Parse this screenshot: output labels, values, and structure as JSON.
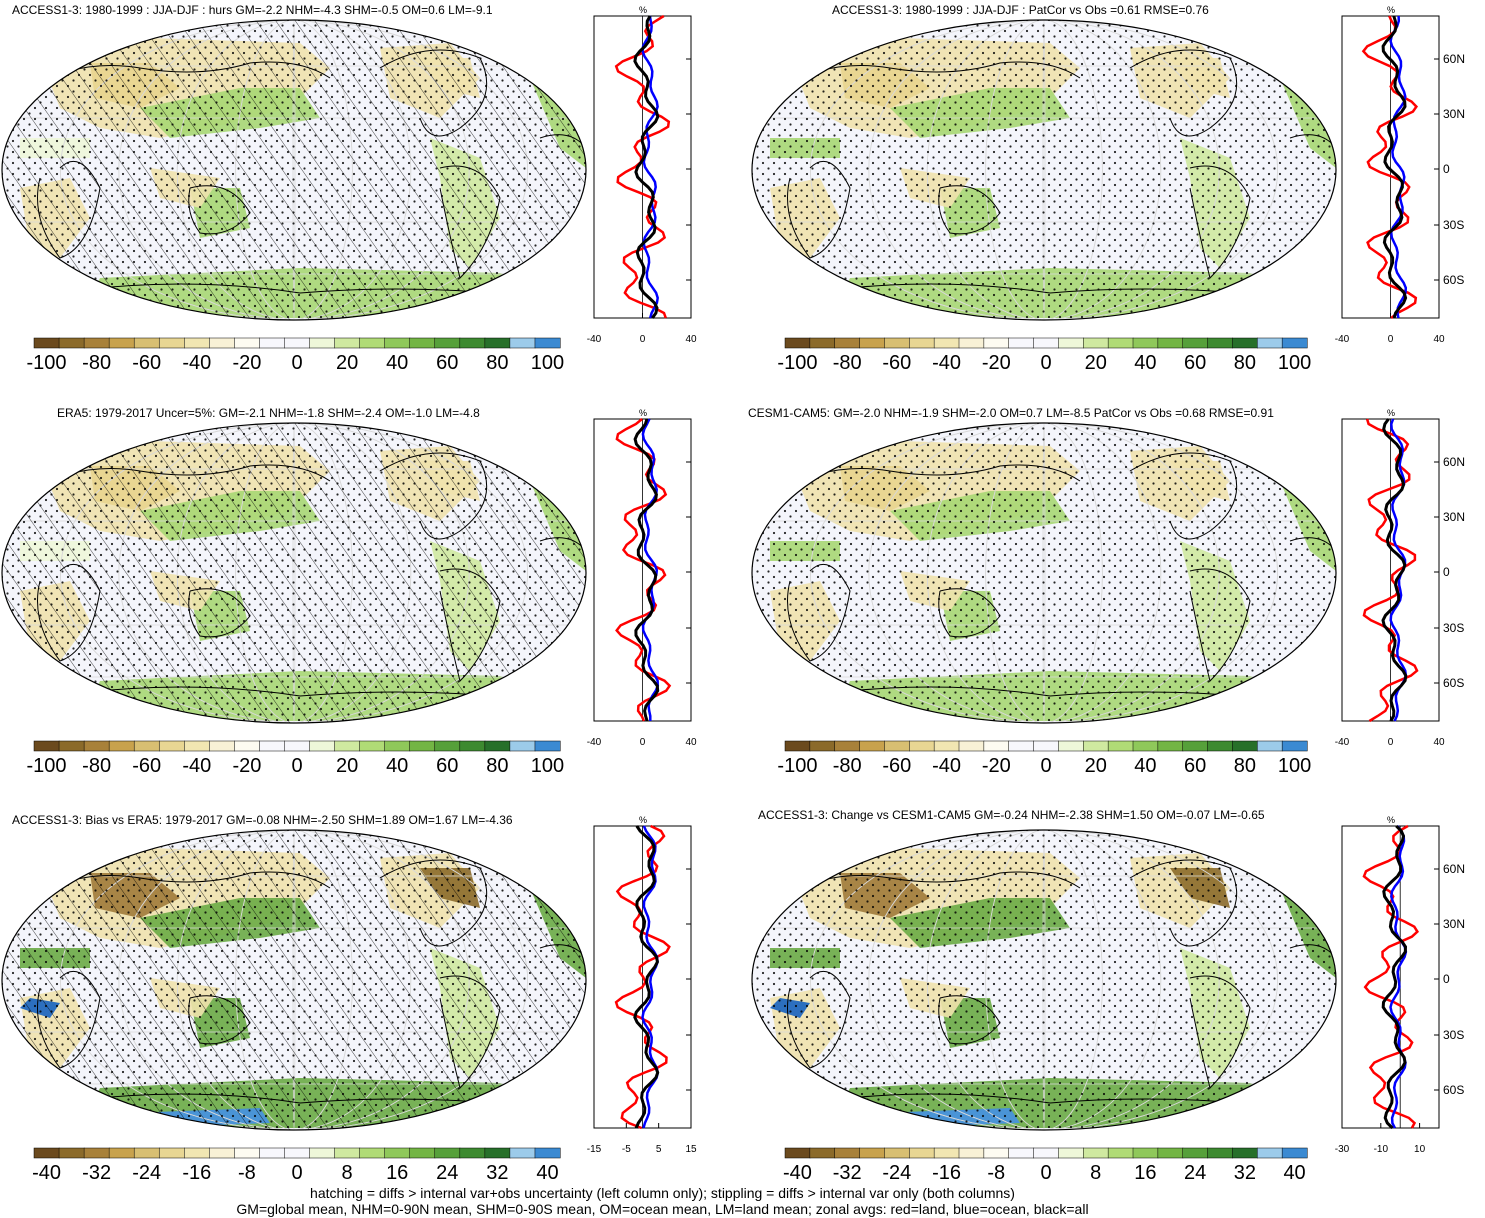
{
  "panels": [
    {
      "id": "p1",
      "title": "ACCESS1-3: 1980-1999 : JJA-DJF : hurs GM=-2.2 NHM=-4.3 SHM=-0.5 OM=0.6 LM=-9.1",
      "hatch": true,
      "style": "a",
      "cbar": "c1",
      "zx": "z1",
      "showSideLabels": false
    },
    {
      "id": "p2",
      "title": "ACCESS1-3: 1980-1999 : JJA-DJF : PatCor vs Obs =0.61 RMSE=0.76",
      "hatch": false,
      "style": "b",
      "cbar": "c1",
      "zx": "z1",
      "showSideLabels": true
    },
    {
      "id": "p3",
      "title": "ERA5: 1979-2017 Uncer=5%: GM=-2.1 NHM=-1.8 SHM=-2.4 OM=-1.0 LM=-4.8",
      "hatch": true,
      "style": "a",
      "cbar": "c1",
      "zx": "z1",
      "showSideLabels": false
    },
    {
      "id": "p4",
      "title": "CESM1-CAM5: GM=-2.0 NHM=-1.9 SHM=-2.0 OM=0.7 LM=-8.5 PatCor vs Obs =0.68 RMSE=0.91",
      "hatch": false,
      "style": "b",
      "cbar": "c1",
      "zx": "z1",
      "showSideLabels": true
    },
    {
      "id": "p5",
      "title": "ACCESS1-3: Bias vs ERA5: 1979-2017 GM=-0.08 NHM=-2.50 SHM=1.89 OM=1.67 LM=-4.36",
      "hatch": true,
      "style": "c",
      "cbar": "c2",
      "zx": "z2",
      "showSideLabels": false
    },
    {
      "id": "p6",
      "title": "ACCESS1-3: Change vs CESM1-CAM5 GM=-0.24 NHM=-2.38 SHM=1.50 OM=-0.07 LM=-0.65",
      "hatch": false,
      "style": "c",
      "cbar": "c2",
      "zx": "z3",
      "showSideLabels": true
    }
  ],
  "lat_labels": [
    "60N",
    "30N",
    "0",
    "30S",
    "60S"
  ],
  "zonal_units": "%",
  "colorbars": {
    "c1": {
      "labels": [
        "-100",
        "-80",
        "-60",
        "-40",
        "-20",
        "0",
        "20",
        "40",
        "60",
        "80",
        "100"
      ]
    },
    "c2": {
      "labels": [
        "-40",
        "-32",
        "-24",
        "-16",
        "-8",
        "0",
        "8",
        "16",
        "24",
        "32",
        "40"
      ]
    }
  },
  "zonal_x": {
    "z1": {
      "labels": [
        "-40",
        "0",
        "40"
      ],
      "range": [
        -40,
        40
      ]
    },
    "z2": {
      "labels": [
        "-15",
        "-5",
        "5",
        "15"
      ],
      "range": [
        -15,
        15
      ]
    },
    "z3": {
      "labels": [
        "-30",
        "-10",
        "10"
      ],
      "range": [
        -30,
        20
      ]
    }
  },
  "palette": [
    "#6b4a1e",
    "#8b6a2a",
    "#a8813a",
    "#c8a24d",
    "#d8bf72",
    "#e8d693",
    "#f1e6b2",
    "#f8f1d6",
    "#fdfbf1",
    "#f7f7fc",
    "#f7f7fc",
    "#eef7d9",
    "#cfe9a0",
    "#b0db76",
    "#8fc85a",
    "#73b544",
    "#56a03a",
    "#3d8a30",
    "#27702a",
    "#9ccbea",
    "#3b8ad2"
  ],
  "zonal_colors": {
    "land": "#ff0000",
    "ocean": "#0000ff",
    "all": "#000000"
  },
  "footer": {
    "line1": "hatching = diffs > internal var+obs uncertainty (left column only); stippling = diffs > internal var only (both columns)",
    "line2": "GM=global mean, NHM=0-90N mean, SHM=0-90S mean, OM=ocean mean, LM=land mean; zonal avgs: red=land, blue=ocean, black=all"
  }
}
